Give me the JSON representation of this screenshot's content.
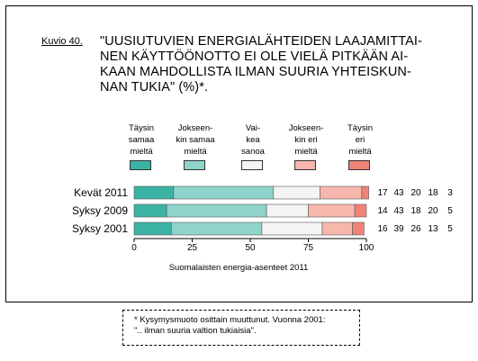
{
  "figure_label": "Kuvio 40.",
  "title_lines": [
    "\"UUSIUTUVIEN ENERGIALÄHTEIDEN LAAJAMITTAI-",
    "NEN KÄYTTÖÖNOTTO EI OLE VIELÄ PITKÄÄN AI-",
    "KAAN MAHDOLLISTA ILMAN SUURIA YHTEISKUN-",
    "NAN TUKIA\" (%)*."
  ],
  "source": "Suomalaisten energia-asenteet 2011",
  "footnote": [
    "* Kysymysmuoto osittain muuttunut. Vuonna 2001:",
    "\".. ilman suuria valtion tukiaisia\"."
  ],
  "colors": {
    "taysin_samaa": "#3bb3a4",
    "jokseenkin_samaa": "#8ed4cc",
    "vaikea_sanoa": "#f4f4f4",
    "jokseenkin_eri": "#f8b7ad",
    "taysin_eri": "#ef8378"
  },
  "chart_data": {
    "type": "bar",
    "orientation": "horizontal",
    "stacked": true,
    "categories": [
      "Kevät 2011",
      "Syksy 2009",
      "Syksy 2001"
    ],
    "series": [
      {
        "name": "Täysin samaa mieltä",
        "legend_lines": [
          "Täysin",
          "samaa",
          "mieltä"
        ],
        "color_key": "taysin_samaa",
        "values": [
          17,
          14,
          16
        ]
      },
      {
        "name": "Jokseenkin samaa mieltä",
        "legend_lines": [
          "Jokseen-",
          "kin samaa",
          "mieltä"
        ],
        "color_key": "jokseenkin_samaa",
        "values": [
          43,
          43,
          39
        ]
      },
      {
        "name": "Vaikea sanoa",
        "legend_lines": [
          "Vai-",
          "kea",
          "sanoa"
        ],
        "color_key": "vaikea_sanoa",
        "values": [
          20,
          18,
          26
        ]
      },
      {
        "name": "Jokseenkin eri mieltä",
        "legend_lines": [
          "Jokseen-",
          "kin eri",
          "mieltä"
        ],
        "color_key": "jokseenkin_eri",
        "values": [
          18,
          20,
          13
        ]
      },
      {
        "name": "Täysin eri mieltä",
        "legend_lines": [
          "Täysin",
          "eri",
          "mieltä"
        ],
        "color_key": "taysin_eri",
        "values": [
          3,
          5,
          5
        ]
      }
    ],
    "xlim": [
      0,
      100
    ],
    "xticks": [
      0,
      25,
      50,
      75,
      100
    ],
    "grid": false,
    "legend_position": "top"
  }
}
